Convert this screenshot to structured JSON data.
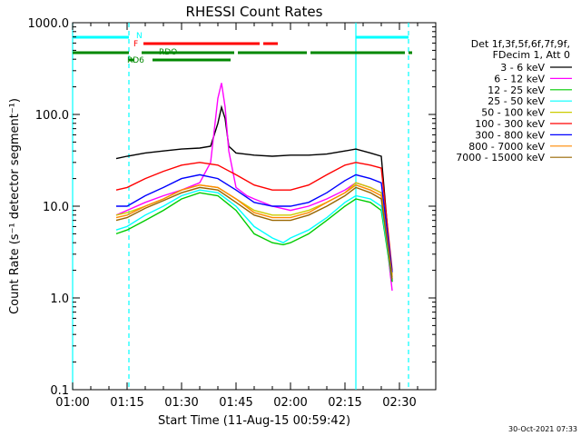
{
  "chart_data": {
    "type": "line",
    "title": "RHESSI Count Rates",
    "xlabel": "Start Time (11-Aug-15 00:59:42)",
    "ylabel": "Count Rate (s⁻¹ detector segment⁻¹)",
    "yscale": "log",
    "ylim": [
      0.1,
      1000
    ],
    "xlim_minutes": [
      0,
      100
    ],
    "x_ticks": [
      {
        "m": 0,
        "label": "01:00"
      },
      {
        "m": 15,
        "label": "01:15"
      },
      {
        "m": 30,
        "label": "01:30"
      },
      {
        "m": 45,
        "label": "01:45"
      },
      {
        "m": 60,
        "label": "02:00"
      },
      {
        "m": 75,
        "label": "02:15"
      },
      {
        "m": 90,
        "label": "02:30"
      }
    ],
    "y_ticks": [
      {
        "v": 1000,
        "label": "1000.0"
      },
      {
        "v": 100,
        "label": "100.0"
      },
      {
        "v": 10,
        "label": "10.0"
      },
      {
        "v": 1,
        "label": "1.0"
      },
      {
        "v": 0.1,
        "label": "0.1"
      }
    ],
    "legend_header": [
      "Det 1f,3f,5f,6f,7f,9f,",
      "FDecim 1, Att 0"
    ],
    "legend_position": "right",
    "series": [
      {
        "name": "3 - 6 keV",
        "color": "#000000",
        "x": [
          12,
          15,
          20,
          25,
          30,
          35,
          38,
          40,
          41,
          42,
          43,
          45,
          50,
          55,
          60,
          65,
          70,
          75,
          78,
          82,
          85,
          88
        ],
        "y": [
          33,
          35,
          38,
          40,
          42,
          43,
          45,
          80,
          120,
          90,
          45,
          38,
          36,
          35,
          36,
          36,
          37,
          40,
          42,
          38,
          35,
          1.5
        ]
      },
      {
        "name": "6 - 12 keV",
        "color": "#ff00ff",
        "x": [
          12,
          15,
          20,
          25,
          30,
          35,
          38,
          40,
          41,
          42,
          43,
          45,
          48,
          50,
          55,
          60,
          65,
          70,
          75,
          78,
          82,
          85,
          88
        ],
        "y": [
          8,
          9,
          11,
          13,
          15,
          18,
          30,
          150,
          220,
          120,
          40,
          16,
          13,
          12,
          10,
          9,
          10,
          12,
          15,
          18,
          16,
          14,
          1.2
        ]
      },
      {
        "name": "12 - 25 keV",
        "color": "#00cc00",
        "x": [
          12,
          15,
          20,
          25,
          30,
          35,
          40,
          45,
          50,
          55,
          58,
          60,
          65,
          70,
          75,
          78,
          82,
          85,
          88
        ],
        "y": [
          5,
          5.5,
          7,
          9,
          12,
          14,
          13,
          9,
          5,
          4,
          3.8,
          4,
          5,
          7,
          10,
          12,
          11,
          9,
          1.5
        ]
      },
      {
        "name": "25 - 50 keV",
        "color": "#00ffff",
        "x": [
          12,
          15,
          20,
          25,
          30,
          35,
          40,
          45,
          50,
          55,
          58,
          60,
          65,
          70,
          75,
          78,
          82,
          85,
          88
        ],
        "y": [
          5.5,
          6,
          8,
          10,
          13,
          15,
          14,
          10,
          6,
          4.5,
          4,
          4.5,
          5.5,
          7.5,
          11,
          13,
          12,
          10,
          1.6
        ]
      },
      {
        "name": "50 - 100 keV",
        "color": "#cccc00",
        "x": [
          12,
          15,
          20,
          25,
          30,
          35,
          40,
          45,
          50,
          55,
          60,
          65,
          70,
          75,
          78,
          82,
          85,
          88
        ],
        "y": [
          8,
          8.5,
          10,
          12,
          15,
          17,
          16,
          12,
          9,
          8,
          8,
          9,
          11,
          14,
          18,
          16,
          14,
          1.8
        ]
      },
      {
        "name": "100 - 300 keV",
        "color": "#ff0000",
        "x": [
          12,
          15,
          20,
          25,
          30,
          35,
          40,
          45,
          50,
          55,
          60,
          65,
          70,
          75,
          78,
          82,
          85,
          88
        ],
        "y": [
          15,
          16,
          20,
          24,
          28,
          30,
          28,
          22,
          17,
          15,
          15,
          17,
          22,
          28,
          30,
          28,
          26,
          2
        ]
      },
      {
        "name": "300 - 800 keV",
        "color": "#0000ff",
        "x": [
          12,
          15,
          20,
          25,
          30,
          35,
          40,
          45,
          50,
          55,
          60,
          65,
          70,
          75,
          78,
          82,
          85,
          88
        ],
        "y": [
          10,
          10,
          13,
          16,
          20,
          22,
          20,
          15,
          11,
          10,
          10,
          11,
          14,
          19,
          22,
          20,
          18,
          1.9
        ]
      },
      {
        "name": "800 - 7000 keV",
        "color": "#ff8800",
        "x": [
          12,
          15,
          20,
          25,
          30,
          35,
          40,
          45,
          50,
          55,
          60,
          65,
          70,
          75,
          78,
          82,
          85,
          88
        ],
        "y": [
          7.5,
          8,
          10,
          12,
          15,
          17,
          16,
          12,
          8.5,
          7.5,
          7.5,
          8.5,
          11,
          14,
          17,
          15,
          13,
          1.7
        ]
      },
      {
        "name": "7000 - 15000 keV",
        "color": "#996600",
        "x": [
          12,
          15,
          20,
          25,
          30,
          35,
          40,
          45,
          50,
          55,
          60,
          65,
          70,
          75,
          78,
          82,
          85,
          88
        ],
        "y": [
          7,
          7.5,
          9.5,
          11.5,
          14,
          16,
          15,
          11,
          8,
          7,
          7,
          8,
          10,
          13,
          16,
          14,
          12,
          1.6
        ]
      }
    ],
    "flag_labels": [
      {
        "text": "N",
        "color": "#00ffff"
      },
      {
        "text": "F",
        "color": "#ff0000"
      },
      {
        "text": "RDO",
        "color": "#008800"
      },
      {
        "text": "RD6",
        "color": "#008800"
      }
    ],
    "flag_bars": [
      {
        "color": "#00ffff",
        "segments": [
          [
            0,
            15.5
          ],
          [
            78,
            92.5
          ]
        ]
      },
      {
        "color": "#ff0000",
        "segments": [
          [
            19.5,
            51.5
          ],
          [
            52.5,
            56.5
          ]
        ]
      },
      {
        "color": "#008800",
        "segments": [
          [
            0,
            15.5
          ],
          [
            19,
            44.5
          ],
          [
            45.5,
            64.5
          ],
          [
            65.5,
            91.5
          ],
          [
            92.5,
            93.5
          ]
        ]
      },
      {
        "color": "#008800",
        "segments": [
          [
            15.5,
            17
          ],
          [
            22,
            43.5
          ]
        ]
      }
    ],
    "vlines": [
      {
        "m": 0,
        "color": "#00ffff",
        "dash": false
      },
      {
        "m": 15.5,
        "color": "#00ffff",
        "dash": true
      },
      {
        "m": 78,
        "color": "#00ffff",
        "dash": false
      },
      {
        "m": 92.5,
        "color": "#00ffff",
        "dash": true
      }
    ],
    "footer": "30-Oct-2021 07:33"
  }
}
